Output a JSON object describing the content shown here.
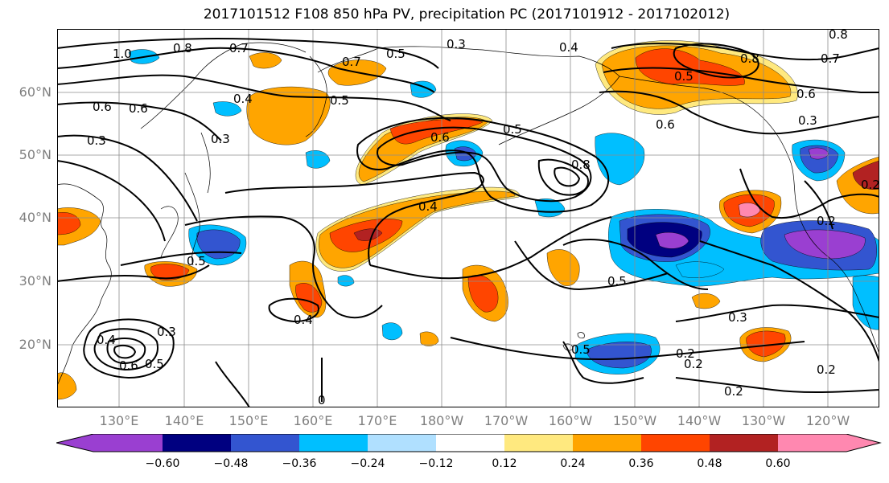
{
  "title": "2017101512 F108 850 hPa PV, precipitation PC (2017101912 - 2017102012)",
  "lat_labels": [
    "60°N",
    "50°N",
    "40°N",
    "30°N",
    "20°N"
  ],
  "lon_labels": [
    "130°E",
    "140°E",
    "150°E",
    "160°E",
    "170°E",
    "180°W",
    "170°W",
    "160°W",
    "150°W",
    "140°W",
    "130°W",
    "120°W"
  ],
  "colorbar": {
    "tick_labels": [
      "−0.60",
      "−0.48",
      "−0.36",
      "−0.24",
      "−0.12",
      "0.12",
      "0.24",
      "0.36",
      "0.48",
      "0.60"
    ],
    "colors": [
      "#9a3fd1",
      "#000080",
      "#3355d0",
      "#00bfff",
      "#b0e0ff",
      "#ffffff",
      "#ffe97f",
      "#ffa500",
      "#ff4500",
      "#b22222",
      "#ff88b0",
      "#ff88b0"
    ]
  },
  "contour_labels": [
    "1.0",
    "0.8",
    "0.7",
    "0.5",
    "0.3",
    "0.4",
    "0.8",
    "0.5",
    "0.8",
    "0.7",
    "0.6",
    "0.4",
    "0.3",
    "0.6",
    "0.6",
    "0.3",
    "0.6",
    "0.5",
    "0.8",
    "0.7",
    "0.4",
    "0.5",
    "0.4",
    "0.5",
    "0.5",
    "0.4",
    "0.3",
    "0.6",
    "0.5",
    "0.2",
    "0.2",
    "0.3",
    "0.2",
    "0.3",
    "0.2",
    "0.2",
    "0.6",
    "0.5",
    "0.2",
    "0"
  ]
}
